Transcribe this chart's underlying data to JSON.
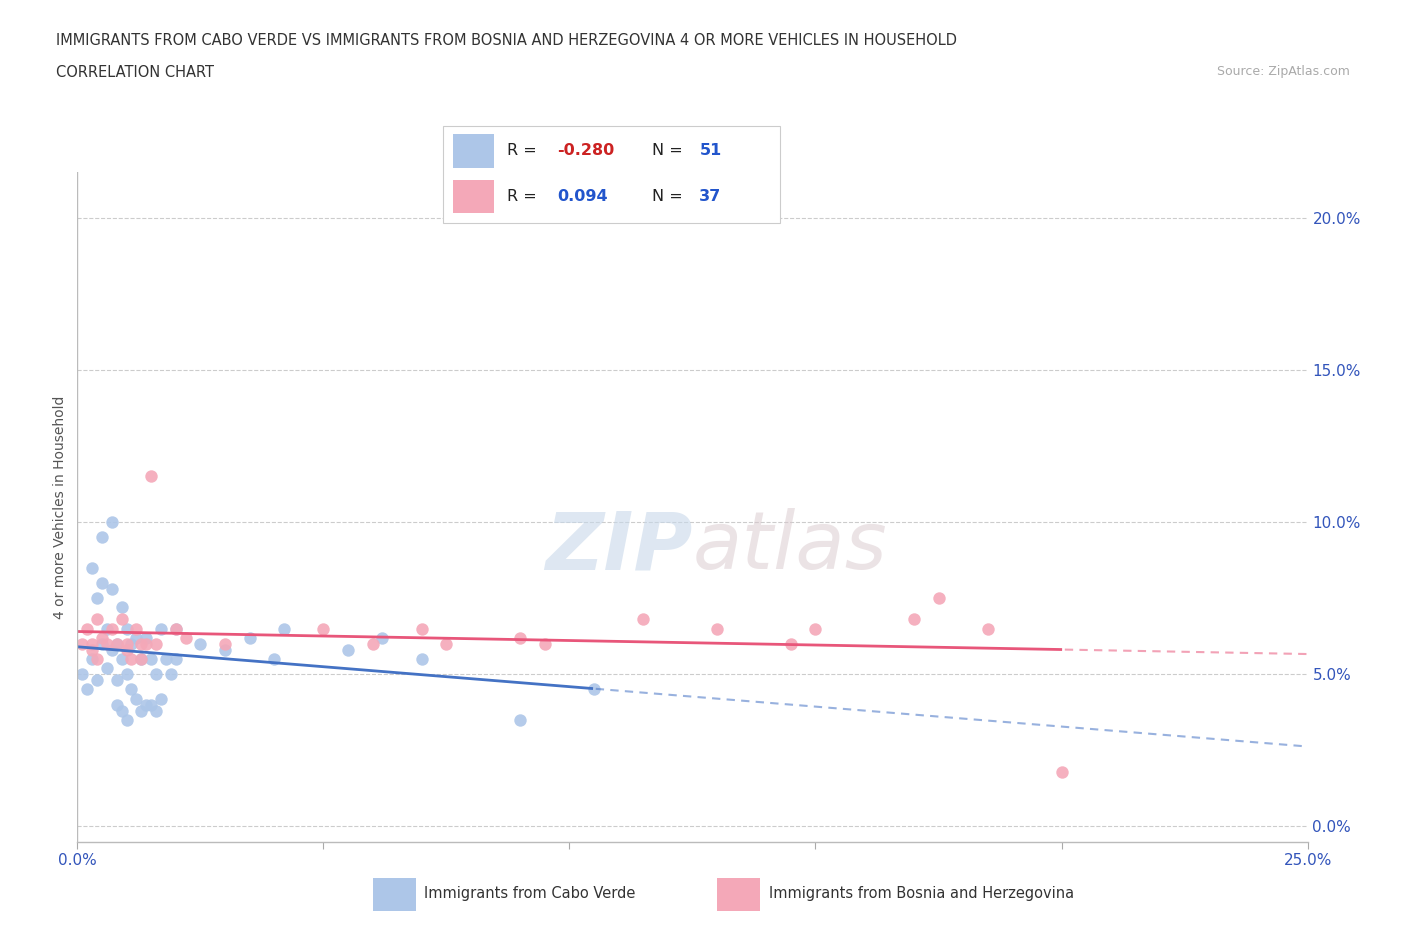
{
  "title_line1": "IMMIGRANTS FROM CABO VERDE VS IMMIGRANTS FROM BOSNIA AND HERZEGOVINA 4 OR MORE VEHICLES IN HOUSEHOLD",
  "title_line2": "CORRELATION CHART",
  "source_text": "Source: ZipAtlas.com",
  "ylabel": "4 or more Vehicles in Household",
  "xlim": [
    0.0,
    0.25
  ],
  "ylim": [
    -0.005,
    0.215
  ],
  "yticks": [
    0.0,
    0.05,
    0.1,
    0.15,
    0.2
  ],
  "ytick_labels": [
    "0.0%",
    "5.0%",
    "10.0%",
    "15.0%",
    "20.0%"
  ],
  "xticks": [
    0.0,
    0.05,
    0.1,
    0.15,
    0.2,
    0.25
  ],
  "xtick_labels": [
    "0.0%",
    "",
    "",
    "",
    "",
    "25.0%"
  ],
  "cabo_verde_color": "#adc6e8",
  "bosnia_color": "#f4a8b8",
  "cabo_verde_R": -0.28,
  "cabo_verde_N": 51,
  "bosnia_R": 0.094,
  "bosnia_N": 37,
  "cabo_verde_line_color": "#4472c4",
  "bosnia_line_color": "#e8567a",
  "legend_R_color": "#cc2222",
  "legend_N_color": "#2255cc",
  "cabo_verde_x": [
    0.001,
    0.002,
    0.003,
    0.003,
    0.004,
    0.004,
    0.005,
    0.005,
    0.005,
    0.006,
    0.006,
    0.007,
    0.007,
    0.007,
    0.008,
    0.008,
    0.008,
    0.009,
    0.009,
    0.009,
    0.01,
    0.01,
    0.01,
    0.011,
    0.011,
    0.012,
    0.012,
    0.013,
    0.013,
    0.014,
    0.014,
    0.015,
    0.015,
    0.016,
    0.016,
    0.017,
    0.017,
    0.018,
    0.019,
    0.02,
    0.02,
    0.025,
    0.03,
    0.035,
    0.04,
    0.042,
    0.055,
    0.062,
    0.07,
    0.09,
    0.105
  ],
  "cabo_verde_y": [
    0.05,
    0.045,
    0.085,
    0.055,
    0.075,
    0.048,
    0.095,
    0.08,
    0.06,
    0.065,
    0.052,
    0.1,
    0.078,
    0.058,
    0.06,
    0.048,
    0.04,
    0.072,
    0.055,
    0.038,
    0.065,
    0.05,
    0.035,
    0.06,
    0.045,
    0.062,
    0.042,
    0.055,
    0.038,
    0.062,
    0.04,
    0.055,
    0.04,
    0.05,
    0.038,
    0.065,
    0.042,
    0.055,
    0.05,
    0.065,
    0.055,
    0.06,
    0.058,
    0.062,
    0.055,
    0.065,
    0.058,
    0.062,
    0.055,
    0.035,
    0.045
  ],
  "bosnia_x": [
    0.001,
    0.002,
    0.003,
    0.003,
    0.004,
    0.004,
    0.005,
    0.006,
    0.007,
    0.008,
    0.009,
    0.01,
    0.01,
    0.011,
    0.012,
    0.013,
    0.013,
    0.014,
    0.015,
    0.016,
    0.02,
    0.022,
    0.03,
    0.05,
    0.06,
    0.07,
    0.075,
    0.09,
    0.095,
    0.115,
    0.13,
    0.145,
    0.15,
    0.17,
    0.175,
    0.185,
    0.2
  ],
  "bosnia_y": [
    0.06,
    0.065,
    0.06,
    0.058,
    0.068,
    0.055,
    0.062,
    0.06,
    0.065,
    0.06,
    0.068,
    0.06,
    0.058,
    0.055,
    0.065,
    0.06,
    0.055,
    0.06,
    0.115,
    0.06,
    0.065,
    0.062,
    0.06,
    0.065,
    0.06,
    0.065,
    0.06,
    0.062,
    0.06,
    0.068,
    0.065,
    0.06,
    0.065,
    0.068,
    0.075,
    0.065,
    0.018
  ]
}
